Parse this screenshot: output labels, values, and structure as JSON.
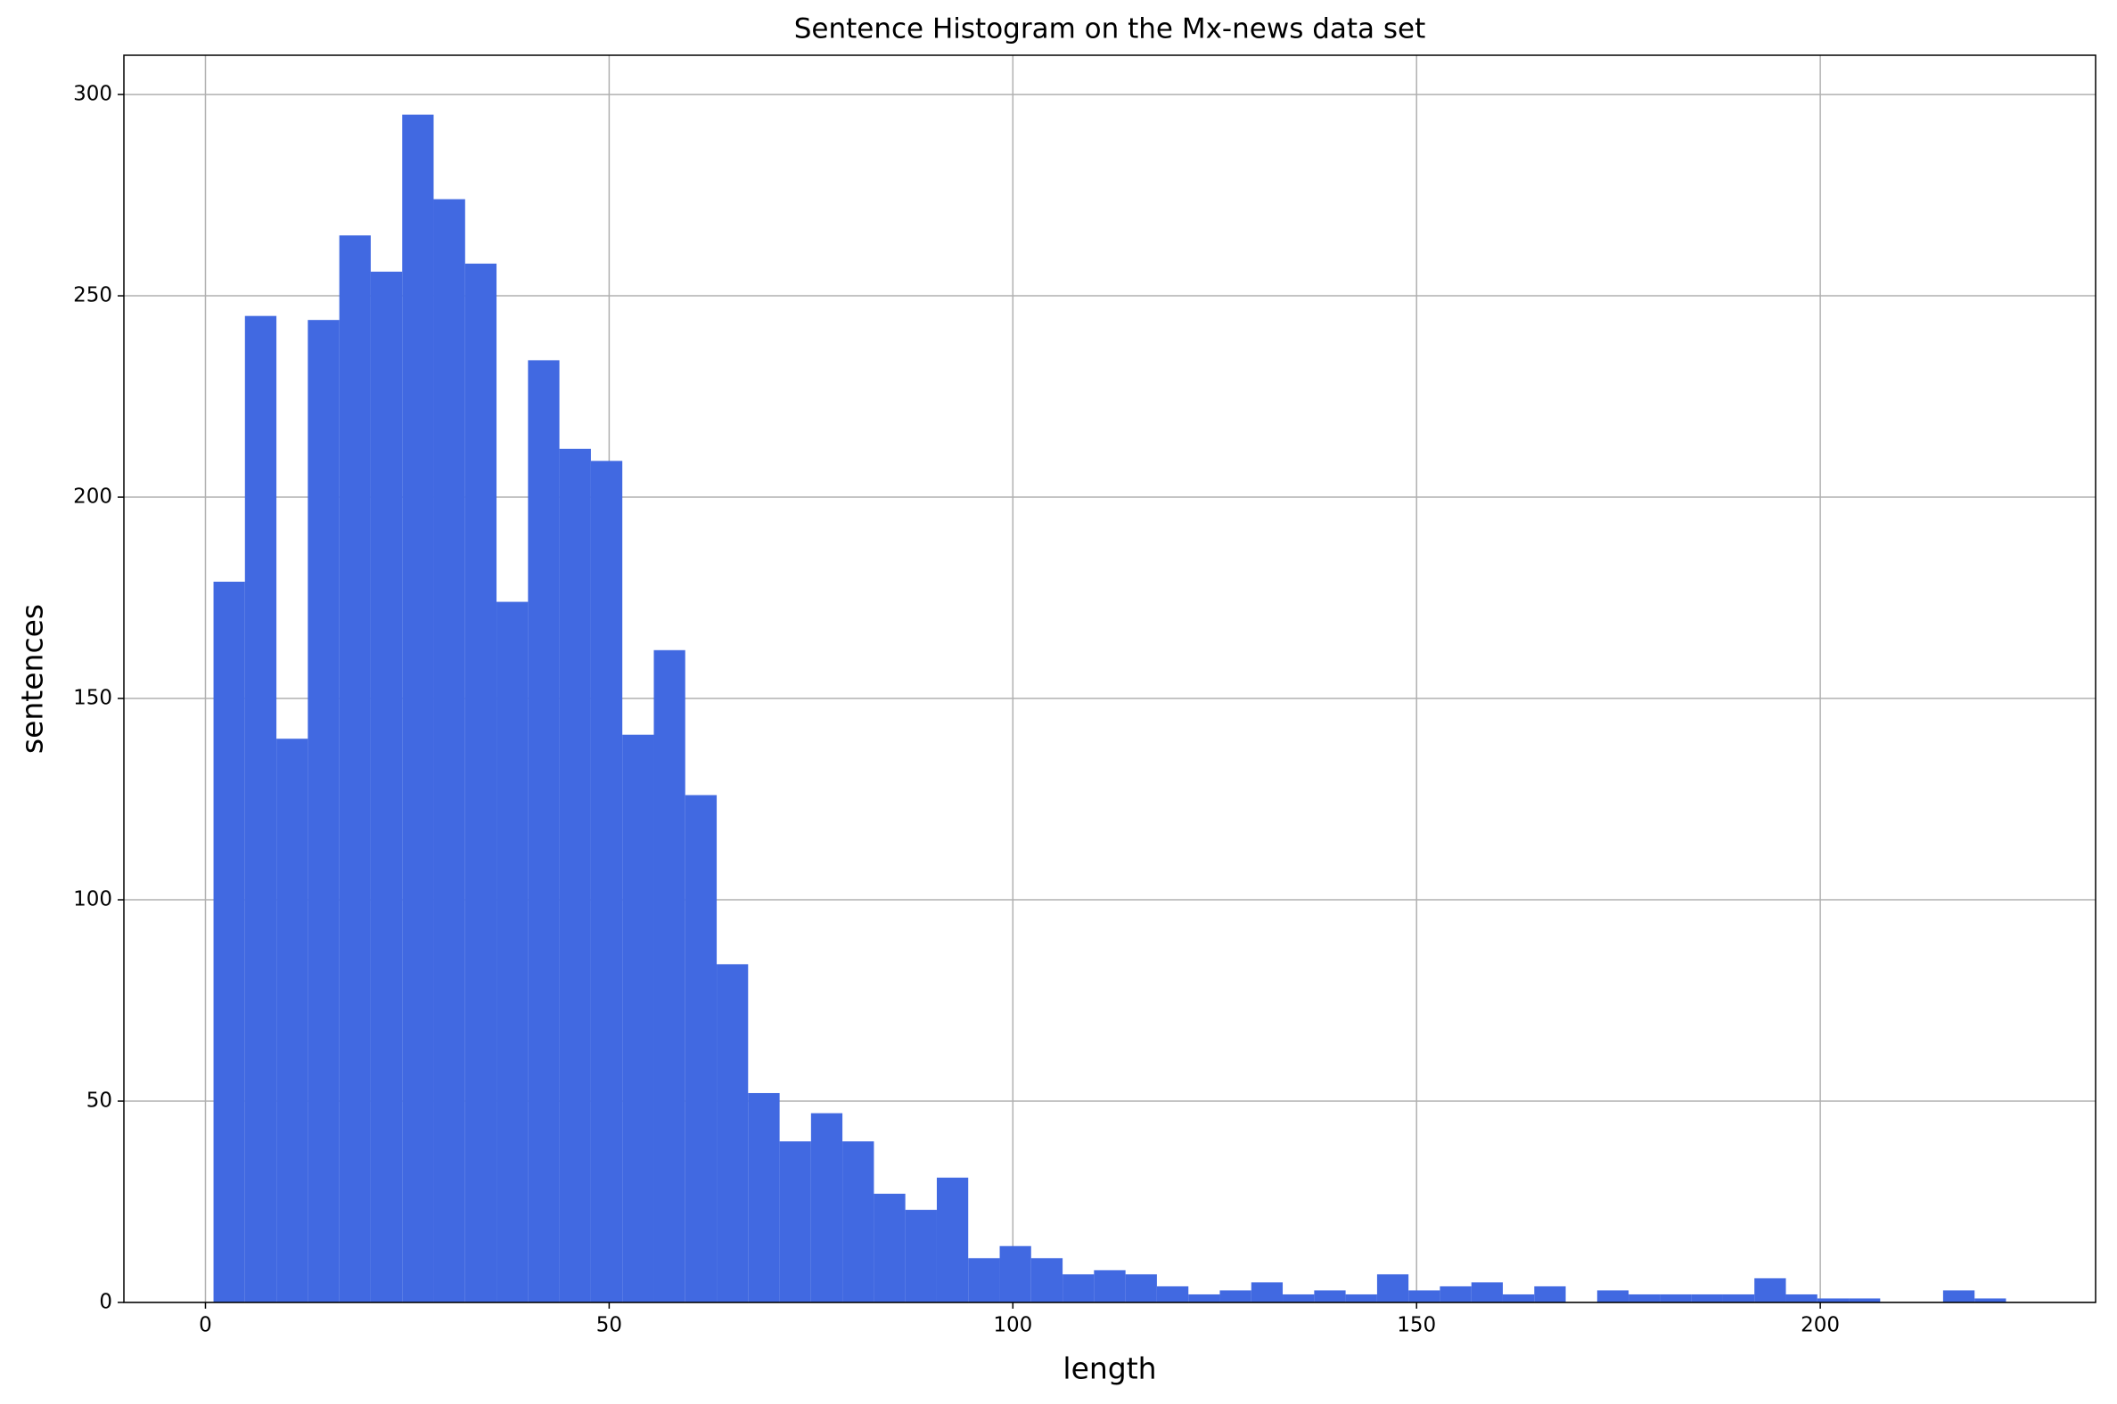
{
  "chart_data": {
    "type": "histogram",
    "title": "Sentence Histogram on the Mx-news data set",
    "x_label": "length",
    "y_label": "sentences",
    "color": "#4169e1",
    "grid": true,
    "bins": [
      1,
      4.89,
      8.79,
      12.68,
      16.58,
      20.47,
      24.37,
      28.26,
      32.16,
      36.05,
      39.95,
      43.84,
      47.74,
      51.63,
      55.53,
      59.42,
      63.32,
      67.21,
      71.11,
      75.0,
      78.89,
      82.79,
      86.68,
      90.58,
      94.47,
      98.37,
      102.26,
      106.16,
      110.05,
      113.95,
      117.84,
      121.74,
      125.63,
      129.53,
      133.42,
      137.32,
      141.21,
      145.11,
      149.0,
      152.89,
      156.79,
      160.68,
      164.58,
      168.47,
      172.37,
      176.26,
      180.16,
      184.05,
      187.95,
      191.84,
      195.74,
      199.63,
      203.53,
      207.42,
      211.32,
      215.21,
      219.11,
      223
    ],
    "counts": [
      179,
      245,
      140,
      244,
      265,
      256,
      295,
      274,
      258,
      174,
      234,
      212,
      209,
      141,
      162,
      126,
      84,
      52,
      40,
      47,
      40,
      27,
      23,
      31,
      11,
      14,
      11,
      7,
      8,
      7,
      4,
      2,
      3,
      5,
      2,
      3,
      2,
      7,
      3,
      4,
      5,
      2,
      4,
      0,
      3,
      2,
      2,
      2,
      2,
      6,
      2,
      1,
      1,
      0,
      0,
      3,
      1
    ],
    "xlim": [
      -10.1,
      234.1
    ],
    "ylim": [
      0,
      309.75
    ],
    "xticks": [
      0,
      50,
      100,
      150,
      200
    ],
    "yticks": [
      0,
      50,
      100,
      150,
      200,
      250,
      300
    ]
  }
}
